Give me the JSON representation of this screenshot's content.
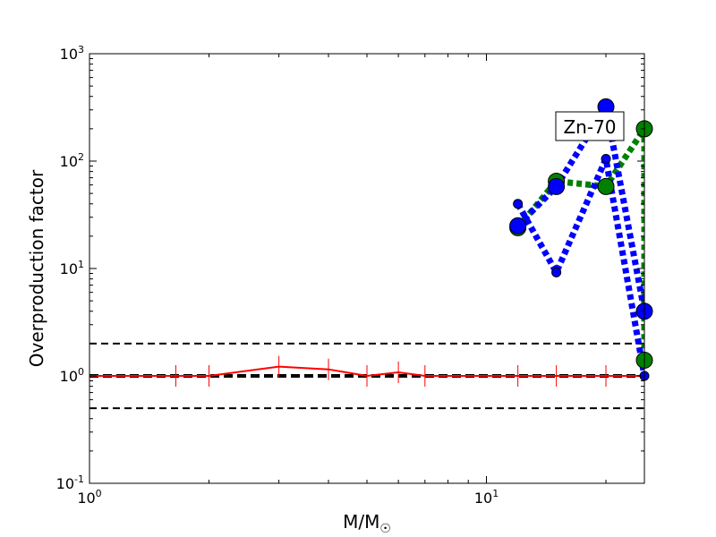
{
  "chart_data": {
    "type": "line",
    "title": "",
    "xlabel": "M/M",
    "xlabel_sub": "☉",
    "ylabel": "Overproduction factor",
    "xscale": "log",
    "yscale": "log",
    "xlim": [
      1,
      25
    ],
    "ylim": [
      0.1,
      1000
    ],
    "x_ticks": [
      {
        "value": 1,
        "base": "10",
        "exp": "0"
      },
      {
        "value": 10,
        "base": "10",
        "exp": "1"
      }
    ],
    "y_ticks": [
      {
        "value": 0.1,
        "base": "10",
        "exp": "-1"
      },
      {
        "value": 1,
        "base": "10",
        "exp": "0"
      },
      {
        "value": 10,
        "base": "10",
        "exp": "1"
      },
      {
        "value": 100,
        "base": "10",
        "exp": "2"
      },
      {
        "value": 1000,
        "base": "10",
        "exp": "3"
      }
    ],
    "grid": false,
    "legend": "none",
    "annotation": {
      "text": "Zn-70",
      "x": 17.5,
      "y": 200
    },
    "reference_lines": [
      {
        "y": 2,
        "style": "dashed",
        "color": "#000000",
        "width": 2
      },
      {
        "y": 1,
        "style": "dashed",
        "color": "#000000",
        "width": 4
      },
      {
        "y": 0.5,
        "style": "dashed",
        "color": "#000000",
        "width": 2
      }
    ],
    "series": [
      {
        "color": "#ff0000",
        "style": "solid",
        "marker": "vline",
        "points": [
          [
            1,
            1.0
          ],
          [
            1.65,
            1.0
          ],
          [
            2,
            1.0
          ],
          [
            3,
            1.22
          ],
          [
            4,
            1.15
          ],
          [
            5,
            1.0
          ],
          [
            6,
            1.08
          ],
          [
            7,
            1.0
          ],
          [
            12,
            1.0
          ],
          [
            15,
            1.0
          ],
          [
            20,
            1.0
          ],
          [
            25,
            1.0
          ]
        ]
      },
      {
        "color": "#008000",
        "style": "dotted",
        "marker": "circle",
        "points": [
          [
            12,
            24
          ],
          [
            15,
            65
          ],
          [
            20,
            58
          ],
          [
            25,
            200
          ],
          [
            25,
            1.4
          ]
        ]
      },
      {
        "color": "#0000ff",
        "style": "dotted",
        "marker": "circle",
        "points": [
          [
            12,
            25
          ],
          [
            15,
            58
          ],
          [
            20,
            320
          ],
          [
            25,
            4
          ]
        ]
      },
      {
        "color": "#0000ff",
        "style": "dotted",
        "marker": "small-circle",
        "points": [
          [
            12,
            40
          ],
          [
            15,
            9.2
          ],
          [
            20,
            105
          ],
          [
            25,
            1.0
          ]
        ]
      }
    ]
  }
}
